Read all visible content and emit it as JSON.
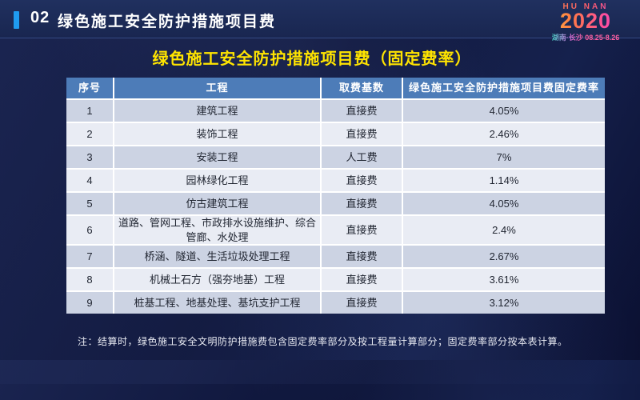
{
  "colors": {
    "accent_bar": "#1f9bf1",
    "title_yellow": "#ffe400",
    "table_header_blue": "#4d7cb8",
    "row_odd": "#ccd3e3",
    "row_even": "#e9ecf4",
    "logo_pink": "#ff5fa2"
  },
  "header": {
    "section_number": "02",
    "section_title": "绿色施工安全防护措施项目费"
  },
  "logo": {
    "region": "HU NAN",
    "year": "2020",
    "location": "湖南·长沙",
    "dates": "08.25-8.26"
  },
  "main": {
    "title": "绿色施工安全防护措施项目费（固定费率）"
  },
  "table": {
    "headers": [
      "序号",
      "工程",
      "取费基数",
      "绿色施工安全防护措施项目费固定费率"
    ],
    "rows": [
      {
        "no": "1",
        "project": "建筑工程",
        "base": "直接费",
        "rate": "4.05%"
      },
      {
        "no": "2",
        "project": "装饰工程",
        "base": "直接费",
        "rate": "2.46%"
      },
      {
        "no": "3",
        "project": "安装工程",
        "base": "人工费",
        "rate": "7%"
      },
      {
        "no": "4",
        "project": "园林绿化工程",
        "base": "直接费",
        "rate": "1.14%"
      },
      {
        "no": "5",
        "project": "仿古建筑工程",
        "base": "直接费",
        "rate": "4.05%"
      },
      {
        "no": "6",
        "project": "道路、管网工程、市政排水设施维护、综合管廊、水处理",
        "base": "直接费",
        "rate": "2.4%"
      },
      {
        "no": "7",
        "project": "桥涵、隧道、生活垃圾处理工程",
        "base": "直接费",
        "rate": "2.67%"
      },
      {
        "no": "8",
        "project": "机械土石方（强夯地基）工程",
        "base": "直接费",
        "rate": "3.61%"
      },
      {
        "no": "9",
        "project": "桩基工程、地基处理、基坑支护工程",
        "base": "直接费",
        "rate": "3.12%"
      }
    ]
  },
  "note": "注：结算时，绿色施工安全文明防护措施费包含固定费率部分及按工程量计算部分；固定费率部分按本表计算。"
}
